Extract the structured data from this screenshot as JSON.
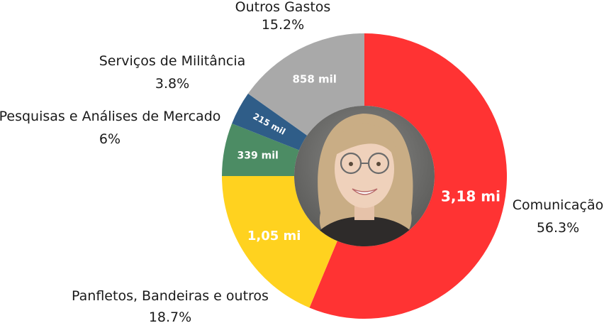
{
  "chart_data": {
    "type": "pie",
    "variant": "donut",
    "center_content": "photo of a smiling blonde woman wearing glasses",
    "slices": [
      {
        "category": "Comunicação",
        "percent": "56.3%",
        "value_label": "3,18 mi",
        "value": 56.3,
        "color": "#ff3333"
      },
      {
        "category": "Panfletos, Bandeiras e outros",
        "percent": "18.7%",
        "value_label": "1,05 mi",
        "value": 18.7,
        "color": "#ffd21f"
      },
      {
        "category": "Pesquisas e Análises de Mercado",
        "percent": "6%",
        "value_label": "339 mil",
        "value": 6.0,
        "color": "#4c8c64"
      },
      {
        "category": "Serviços de Militância",
        "percent": "3.8%",
        "value_label": "215 mil",
        "value": 3.8,
        "color": "#2f5d88"
      },
      {
        "category": "Outros Gastos",
        "percent": "15.2%",
        "value_label": "858 mil",
        "value": 15.2,
        "color": "#a9a9a9"
      }
    ]
  }
}
